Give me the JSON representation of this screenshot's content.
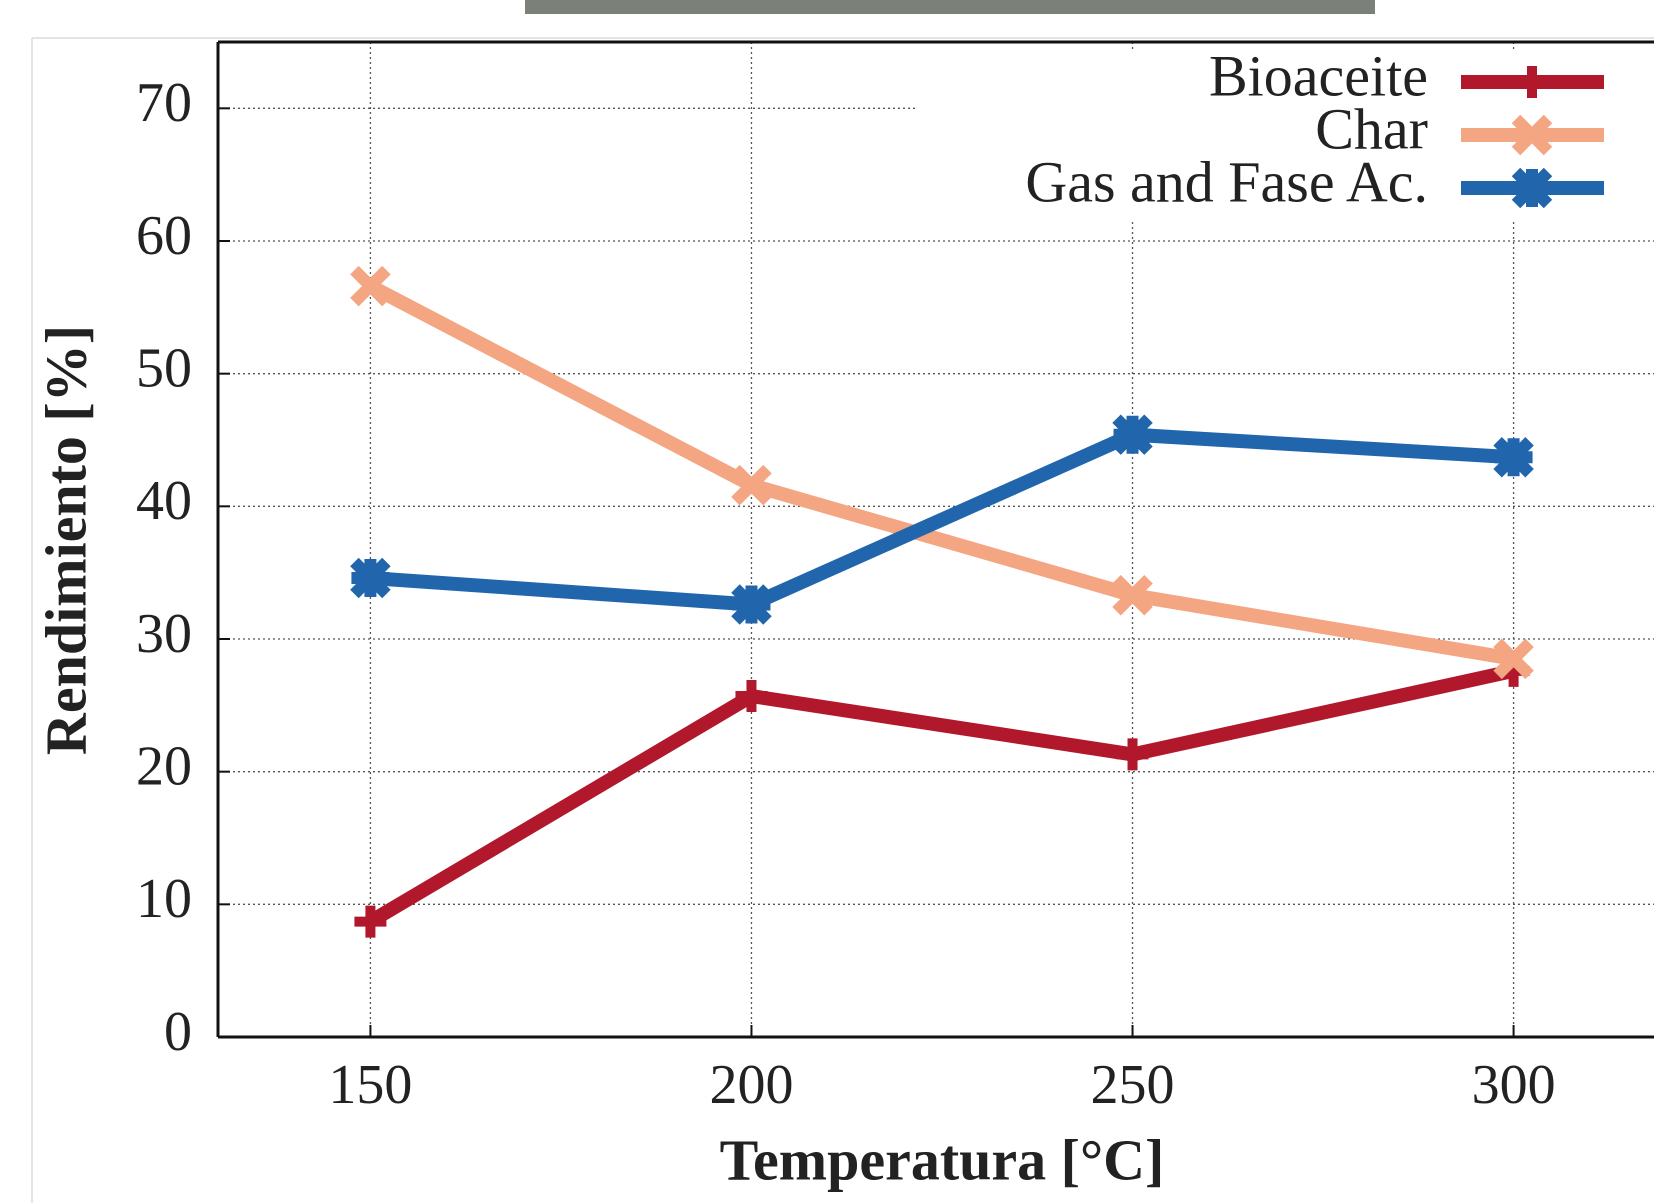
{
  "chart_data": {
    "type": "line",
    "xlabel": "Temperatura [°C]",
    "ylabel": "Rendimiento [%]",
    "x": [
      150,
      200,
      250,
      300
    ],
    "series": [
      {
        "name": "Bioaceite",
        "color": "#b2182b",
        "marker": "plus",
        "values": [
          8.7,
          25.7,
          21.3,
          27.6
        ]
      },
      {
        "name": "Char",
        "color": "#f4a582",
        "marker": "cross",
        "values": [
          56.6,
          41.6,
          33.3,
          28.5
        ]
      },
      {
        "name": "Gas and Fase Ac.",
        "color": "#2166ac",
        "marker": "star",
        "values": [
          34.6,
          32.6,
          45.4,
          43.7
        ]
      }
    ],
    "xlim": [
      130,
      320
    ],
    "xticks": [
      150,
      200,
      250,
      300
    ],
    "ylim": [
      0,
      75
    ],
    "yticks": [
      0,
      10,
      20,
      30,
      40,
      50,
      60,
      70
    ],
    "grid": true,
    "legend": "upper right"
  }
}
